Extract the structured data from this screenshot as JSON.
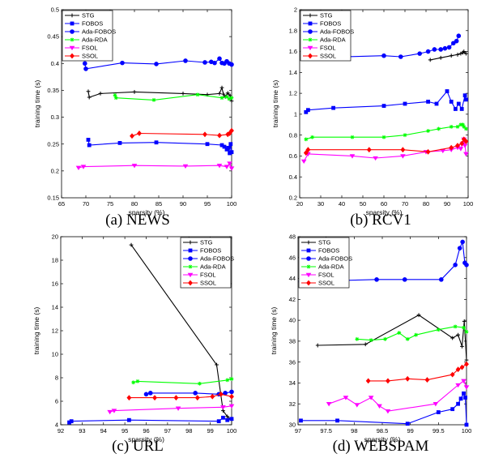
{
  "legend": [
    "STG",
    "FOBOS",
    "Ada-FOBOS",
    "Ada-RDA",
    "FSOL",
    "SSOL"
  ],
  "colors": {
    "STG": "#000000",
    "FOBOS": "#0000ff",
    "Ada-FOBOS": "#0000ff",
    "Ada-RDA": "#00ff00",
    "FSOL": "#ff00ff",
    "SSOL": "#ff0000"
  },
  "markers": {
    "STG": "plus",
    "FOBOS": "square",
    "Ada-FOBOS": "circle",
    "Ada-RDA": "star",
    "FSOL": "triangle-down",
    "SSOL": "diamond"
  },
  "chart_data": [
    {
      "type": "line",
      "caption": "(a) NEWS",
      "xlabel": "sparsity (%)",
      "ylabel": "training time (s)",
      "xlim": [
        65,
        100
      ],
      "ylim": [
        0.15,
        0.5
      ],
      "xticks": [
        "65",
        "70",
        "75",
        "80",
        "85",
        "90",
        "95",
        "100"
      ],
      "yticks": [
        "0.15",
        "0.2",
        "0.25",
        "0.3",
        "0.35",
        "0.4",
        "0.45",
        "0.5"
      ],
      "legend_position": "top-left",
      "series": [
        {
          "name": "STG",
          "x": [
            70.5,
            70.7,
            73,
            80,
            90,
            95,
            97.5,
            98,
            98.3,
            98.7,
            99.2,
            99.7,
            100
          ],
          "y": [
            0.348,
            0.337,
            0.344,
            0.347,
            0.344,
            0.342,
            0.344,
            0.355,
            0.343,
            0.338,
            0.345,
            0.34,
            0.33
          ]
        },
        {
          "name": "FOBOS",
          "x": [
            70.5,
            70.7,
            77,
            84.5,
            95,
            98,
            98.5,
            99,
            99.3,
            99.6,
            99.8,
            100
          ],
          "y": [
            0.258,
            0.248,
            0.252,
            0.253,
            0.25,
            0.248,
            0.245,
            0.24,
            0.243,
            0.233,
            0.25,
            0.235
          ]
        },
        {
          "name": "Ada-FOBOS",
          "x": [
            69.8,
            70,
            77.5,
            84.5,
            90.5,
            94.5,
            95.8,
            96.5,
            97.5,
            98,
            98.5,
            99,
            99.5,
            100
          ],
          "y": [
            0.4,
            0.39,
            0.401,
            0.399,
            0.405,
            0.402,
            0.403,
            0.401,
            0.409,
            0.401,
            0.4,
            0.404,
            0.4,
            0.398
          ]
        },
        {
          "name": "Ada-RDA",
          "x": [
            76,
            76.2,
            84,
            93,
            98,
            99,
            99.5,
            100
          ],
          "y": [
            0.341,
            0.336,
            0.332,
            0.342,
            0.336,
            0.338,
            0.334,
            0.336
          ]
        },
        {
          "name": "FSOL",
          "x": [
            68.5,
            69.5,
            80,
            90.5,
            97.5,
            99,
            99.6,
            100
          ],
          "y": [
            0.206,
            0.208,
            0.21,
            0.209,
            0.21,
            0.208,
            0.214,
            0.205
          ]
        },
        {
          "name": "SSOL",
          "x": [
            79.5,
            81,
            94.5,
            97.5,
            99.2,
            99.6,
            100
          ],
          "y": [
            0.265,
            0.27,
            0.268,
            0.266,
            0.268,
            0.27,
            0.275
          ]
        }
      ]
    },
    {
      "type": "line",
      "caption": "(b) RCV1",
      "xlabel": "sparsity (%)",
      "ylabel": "training time (s)",
      "xlim": [
        20,
        100
      ],
      "ylim": [
        0.2,
        2
      ],
      "xticks": [
        "20",
        "30",
        "40",
        "50",
        "60",
        "70",
        "80",
        "90",
        "100"
      ],
      "yticks": [
        "0.2",
        "0.4",
        "0.6",
        "0.8",
        "1",
        "1.2",
        "1.4",
        "1.6",
        "1.8",
        "2"
      ],
      "legend_position": "top-left",
      "series": [
        {
          "name": "STG",
          "x": [
            82,
            87,
            92,
            95,
            96.5,
            97.5,
            98,
            99
          ],
          "y": [
            1.52,
            1.54,
            1.56,
            1.57,
            1.58,
            1.59,
            1.6,
            1.58
          ]
        },
        {
          "name": "FOBOS",
          "x": [
            23,
            24,
            36,
            60,
            70,
            81,
            85,
            90,
            92,
            94,
            95.5,
            97,
            98.5,
            99
          ],
          "y": [
            1.02,
            1.04,
            1.06,
            1.08,
            1.1,
            1.12,
            1.1,
            1.22,
            1.12,
            1.05,
            1.1,
            1.05,
            1.18,
            1.14
          ]
        },
        {
          "name": "Ada-FOBOS",
          "x": [
            24,
            60,
            68,
            77,
            81,
            84,
            87,
            89,
            91,
            93,
            94.5,
            95.5
          ],
          "y": [
            1.54,
            1.56,
            1.55,
            1.58,
            1.6,
            1.62,
            1.62,
            1.63,
            1.64,
            1.68,
            1.7,
            1.75
          ]
        },
        {
          "name": "Ada-RDA",
          "x": [
            23,
            26,
            45,
            60,
            70,
            81,
            86,
            92,
            95,
            96.5,
            97.5,
            98,
            99
          ],
          "y": [
            0.76,
            0.78,
            0.78,
            0.78,
            0.8,
            0.84,
            0.86,
            0.88,
            0.88,
            0.9,
            0.9,
            0.88,
            0.86
          ]
        },
        {
          "name": "FSOL",
          "x": [
            22,
            24,
            45,
            56,
            69,
            80,
            88,
            92,
            95,
            96.5,
            97.5,
            98,
            98.5,
            99
          ],
          "y": [
            0.55,
            0.62,
            0.6,
            0.58,
            0.6,
            0.64,
            0.65,
            0.66,
            0.68,
            0.67,
            0.72,
            0.76,
            0.7,
            0.62
          ]
        },
        {
          "name": "SSOL",
          "x": [
            23,
            24,
            53,
            69,
            81,
            92,
            95,
            97,
            98,
            99
          ],
          "y": [
            0.63,
            0.66,
            0.66,
            0.66,
            0.64,
            0.68,
            0.7,
            0.72,
            0.76,
            0.74
          ]
        }
      ]
    },
    {
      "type": "line",
      "caption": "(c) URL",
      "xlabel": "sparsity (%)",
      "ylabel": "training time (s)",
      "xlim": [
        92,
        100
      ],
      "ylim": [
        4,
        20
      ],
      "xticks": [
        "92",
        "93",
        "94",
        "95",
        "96",
        "97",
        "98",
        "99",
        "100"
      ],
      "yticks": [
        "4",
        "6",
        "8",
        "10",
        "12",
        "14",
        "16",
        "18",
        "20"
      ],
      "legend_position": "top-right",
      "series": [
        {
          "name": "STG",
          "x": [
            95.3,
            99.3,
            99.6,
            99.8,
            100
          ],
          "y": [
            19.3,
            9.1,
            5.2,
            4.7,
            4.4
          ]
        },
        {
          "name": "FOBOS",
          "x": [
            92.4,
            92.5,
            95.2,
            99.4,
            99.6,
            99.8,
            100
          ],
          "y": [
            4.2,
            4.3,
            4.4,
            4.3,
            4.6,
            4.4,
            4.5
          ]
        },
        {
          "name": "Ada-FOBOS",
          "x": [
            96,
            96.2,
            98.3,
            99.4,
            99.7,
            100
          ],
          "y": [
            6.6,
            6.7,
            6.7,
            6.6,
            6.7,
            6.8
          ]
        },
        {
          "name": "Ada-RDA",
          "x": [
            95.4,
            95.6,
            98.5,
            99.8,
            100
          ],
          "y": [
            7.6,
            7.7,
            7.5,
            7.8,
            7.9
          ]
        },
        {
          "name": "FSOL",
          "x": [
            94.3,
            94.5,
            97.5,
            99.6,
            100
          ],
          "y": [
            5.1,
            5.2,
            5.4,
            5.5,
            5.6
          ]
        },
        {
          "name": "SSOL",
          "x": [
            95.2,
            96.4,
            97.4,
            98.4,
            99.1,
            99.5,
            100
          ],
          "y": [
            6.3,
            6.3,
            6.3,
            6.3,
            6.4,
            6.6,
            6.4
          ]
        }
      ]
    },
    {
      "type": "line",
      "caption": "(d) WEBSPAM",
      "xlabel": "sparsity (%)",
      "ylabel": "training time (s)",
      "xlim": [
        97,
        100
      ],
      "ylim": [
        30,
        48
      ],
      "xticks": [
        "97",
        "97.5",
        "98",
        "98.5",
        "99",
        "99.5",
        "100"
      ],
      "yticks": [
        "30",
        "32",
        "34",
        "36",
        "38",
        "40",
        "42",
        "44",
        "46",
        "48"
      ],
      "legend_position": "top-left",
      "series": [
        {
          "name": "STG",
          "x": [
            97.35,
            98.2,
            99.15,
            99.75,
            99.85,
            99.92,
            99.96,
            100
          ],
          "y": [
            37.6,
            37.7,
            40.5,
            38.3,
            38.6,
            37.5,
            39.9,
            36.2
          ]
        },
        {
          "name": "FOBOS",
          "x": [
            97.05,
            97.7,
            98.95,
            99.5,
            99.75,
            99.85,
            99.9,
            99.95,
            99.98,
            100
          ],
          "y": [
            30.4,
            30.4,
            30.1,
            31.2,
            31.5,
            32.0,
            32.5,
            33.0,
            32.6,
            30.0
          ]
        },
        {
          "name": "Ada-FOBOS",
          "x": [
            97.05,
            98.4,
            98.9,
            99.55,
            99.8,
            99.88,
            99.93,
            99.97,
            100
          ],
          "y": [
            43.7,
            43.9,
            43.9,
            43.9,
            45.3,
            46.9,
            47.5,
            45.5,
            45.3
          ]
        },
        {
          "name": "Ada-RDA",
          "x": [
            98.05,
            98.3,
            98.55,
            98.8,
            98.95,
            99.1,
            99.5,
            99.8,
            99.95,
            100
          ],
          "y": [
            38.2,
            38.1,
            38.2,
            38.8,
            38.2,
            38.6,
            39.1,
            39.4,
            39.3,
            38.9
          ]
        },
        {
          "name": "FSOL",
          "x": [
            97.55,
            97.85,
            98.05,
            98.3,
            98.45,
            98.6,
            99.45,
            99.85,
            99.95,
            100
          ],
          "y": [
            32.0,
            32.6,
            31.9,
            32.6,
            31.8,
            31.3,
            32.0,
            33.8,
            34.2,
            33.6
          ]
        },
        {
          "name": "SSOL",
          "x": [
            98.25,
            98.6,
            98.95,
            99.3,
            99.75,
            99.85,
            99.92,
            100
          ],
          "y": [
            34.2,
            34.2,
            34.4,
            34.3,
            34.8,
            35.3,
            35.5,
            35.8
          ]
        }
      ]
    }
  ]
}
